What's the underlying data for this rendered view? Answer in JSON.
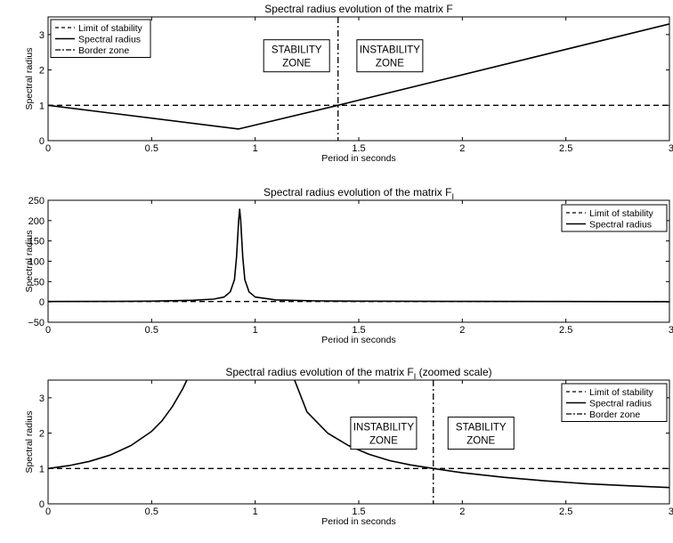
{
  "chart_data": [
    {
      "type": "line",
      "title": "Spectral radius evolution of the matrix F",
      "xlabel": "Period in seconds",
      "ylabel": "Spectral radius",
      "xlim": [
        0,
        3
      ],
      "ylim": [
        0,
        3.5
      ],
      "xticks": [
        0,
        0.5,
        1,
        1.5,
        2,
        2.5,
        3
      ],
      "xtick_labels": [
        "0",
        "0.5",
        "1",
        "1.5",
        "2",
        "2.5",
        "3"
      ],
      "yticks": [
        0,
        1,
        2,
        3
      ],
      "ytick_labels": [
        "0",
        "1",
        "2",
        "3"
      ],
      "grid": false,
      "legend_position": "top-left",
      "legend": [
        "Limit of stability",
        "Spectral radius",
        "Border zone"
      ],
      "series": [
        {
          "name": "Limit of stability",
          "style": "dashed",
          "x": [
            0,
            3
          ],
          "y": [
            1,
            1
          ]
        },
        {
          "name": "Spectral radius",
          "style": "solid",
          "x": [
            0,
            0.92,
            1.4,
            3
          ],
          "y": [
            1,
            0.33,
            1.0,
            3.3
          ]
        }
      ],
      "vline": {
        "name": "Border zone",
        "style": "dashdot",
        "x": 1.4
      },
      "annotations": [
        {
          "lines": [
            "STABILITY",
            "ZONE"
          ],
          "x": 1.2,
          "y": 2.4
        },
        {
          "lines": [
            "INSTABILITY",
            "ZONE"
          ],
          "x": 1.65,
          "y": 2.4
        }
      ]
    },
    {
      "type": "line",
      "title": "Spectral radius evolution of the matrix F",
      "title_subscript": "I",
      "xlabel": "Period in seconds",
      "ylabel": "Spectral radius",
      "xlim": [
        0,
        3
      ],
      "ylim": [
        -50,
        250
      ],
      "xticks": [
        0,
        0.5,
        1,
        1.5,
        2,
        2.5,
        3
      ],
      "xtick_labels": [
        "0",
        "0.5",
        "1",
        "1.5",
        "2",
        "2.5",
        "3"
      ],
      "yticks": [
        -50,
        0,
        50,
        100,
        150,
        200,
        250
      ],
      "ytick_labels": [
        "−50",
        "0",
        "50",
        "100",
        "150",
        "200",
        "250"
      ],
      "grid": false,
      "legend_position": "top-right",
      "legend": [
        "Limit of stability",
        "Spectral radius"
      ],
      "series": [
        {
          "name": "Limit of stability",
          "style": "dashed",
          "x": [
            0,
            3
          ],
          "y": [
            1,
            1
          ]
        },
        {
          "name": "Spectral radius",
          "style": "solid",
          "x": [
            0,
            0.3,
            0.5,
            0.7,
            0.8,
            0.85,
            0.88,
            0.9,
            0.91,
            0.92,
            0.925,
            0.93,
            0.94,
            0.95,
            0.97,
            1.0,
            1.1,
            1.3,
            1.5,
            2.0,
            2.5,
            3.0
          ],
          "y": [
            1,
            1.3,
            2,
            4,
            7,
            12,
            25,
            55,
            110,
            200,
            228,
            200,
            110,
            55,
            25,
            12,
            5,
            2.5,
            1.8,
            1.2,
            1.0,
            0.5
          ]
        }
      ]
    },
    {
      "type": "line",
      "title": "Spectral radius evolution of the matrix F",
      "title_subscript": "I",
      "title_suffix": "(zoomed scale)",
      "xlabel": "Period in seconds",
      "ylabel": "Spectral radius",
      "xlim": [
        0,
        3
      ],
      "ylim": [
        0,
        3.5
      ],
      "xticks": [
        0,
        0.5,
        1,
        1.5,
        2,
        2.5,
        3
      ],
      "xtick_labels": [
        "0",
        "0.5",
        "1",
        "1.5",
        "2",
        "2.5",
        "3"
      ],
      "yticks": [
        0,
        1,
        2,
        3
      ],
      "ytick_labels": [
        "0",
        "1",
        "2",
        "3"
      ],
      "grid": false,
      "legend_position": "top-right",
      "legend": [
        "Limit of stability",
        "Spectral radius",
        "Border zone"
      ],
      "series": [
        {
          "name": "Limit of stability",
          "style": "dashed",
          "x": [
            0,
            3
          ],
          "y": [
            1,
            1
          ]
        },
        {
          "name": "Spectral radius",
          "style": "solid",
          "x": [
            0,
            0.1,
            0.2,
            0.3,
            0.4,
            0.5,
            0.55,
            0.6,
            0.65,
            0.67
          ],
          "y": [
            1.0,
            1.08,
            1.2,
            1.38,
            1.65,
            2.05,
            2.35,
            2.75,
            3.25,
            3.5
          ]
        },
        {
          "name": "Spectral radius",
          "style": "solid",
          "x": [
            1.19,
            1.25,
            1.35,
            1.45,
            1.55,
            1.65,
            1.75,
            1.86,
            2.0,
            2.2,
            2.4,
            2.6,
            2.8,
            3.0
          ],
          "y": [
            3.5,
            2.6,
            2.0,
            1.65,
            1.4,
            1.22,
            1.1,
            1.0,
            0.88,
            0.75,
            0.65,
            0.57,
            0.51,
            0.46
          ]
        }
      ],
      "vline": {
        "name": "Border zone",
        "style": "dashdot",
        "x": 1.86
      },
      "annotations": [
        {
          "lines": [
            "INSTABILITY",
            "ZONE"
          ],
          "x": 1.62,
          "y": 2.0
        },
        {
          "lines": [
            "STABILITY",
            "ZONE"
          ],
          "x": 2.09,
          "y": 2.0
        }
      ]
    }
  ]
}
